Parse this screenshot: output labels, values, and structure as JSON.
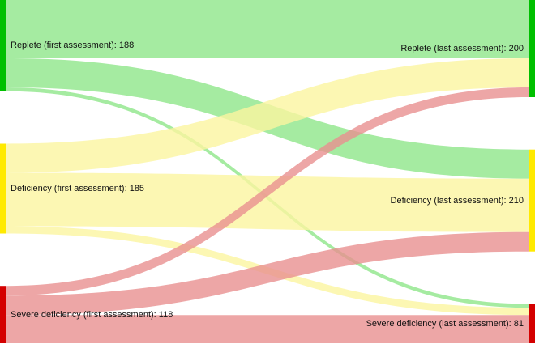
{
  "chart_data": {
    "type": "sankey",
    "nodes": [
      {
        "id": "replete_first",
        "label": "Replete (first assessment): 188",
        "side": "left",
        "value": 188,
        "color": "#00c000"
      },
      {
        "id": "deficiency_first",
        "label": "Deficiency (first assessment): 185",
        "side": "left",
        "value": 185,
        "color": "#ffea00"
      },
      {
        "id": "severe_first",
        "label": "Severe deficiency (first assessment): 118",
        "side": "left",
        "value": 118,
        "color": "#d40000"
      },
      {
        "id": "replete_last",
        "label": "Replete (last assessment): 200",
        "side": "right",
        "value": 200,
        "color": "#00c000"
      },
      {
        "id": "deficiency_last",
        "label": "Deficiency (last assessment): 210",
        "side": "right",
        "value": 210,
        "color": "#ffea00"
      },
      {
        "id": "severe_last",
        "label": "Severe deficiency (last assessment): 81",
        "side": "right",
        "value": 81,
        "color": "#d40000"
      }
    ],
    "links": [
      {
        "source": "replete_first",
        "target": "replete_last",
        "value": 120,
        "color": "#8ee68a"
      },
      {
        "source": "replete_first",
        "target": "deficiency_last",
        "value": 60,
        "color": "#8ee68a"
      },
      {
        "source": "replete_first",
        "target": "severe_last",
        "value": 8,
        "color": "#8ee68a"
      },
      {
        "source": "deficiency_first",
        "target": "replete_last",
        "value": 60,
        "color": "#fbf5a0"
      },
      {
        "source": "deficiency_first",
        "target": "deficiency_last",
        "value": 110,
        "color": "#fbf5a0"
      },
      {
        "source": "deficiency_first",
        "target": "severe_last",
        "value": 15,
        "color": "#fbf5a0"
      },
      {
        "source": "severe_first",
        "target": "replete_last",
        "value": 20,
        "color": "#e89090"
      },
      {
        "source": "severe_first",
        "target": "deficiency_last",
        "value": 40,
        "color": "#e89090"
      },
      {
        "source": "severe_first",
        "target": "severe_last",
        "value": 58,
        "color": "#e89090"
      }
    ]
  }
}
